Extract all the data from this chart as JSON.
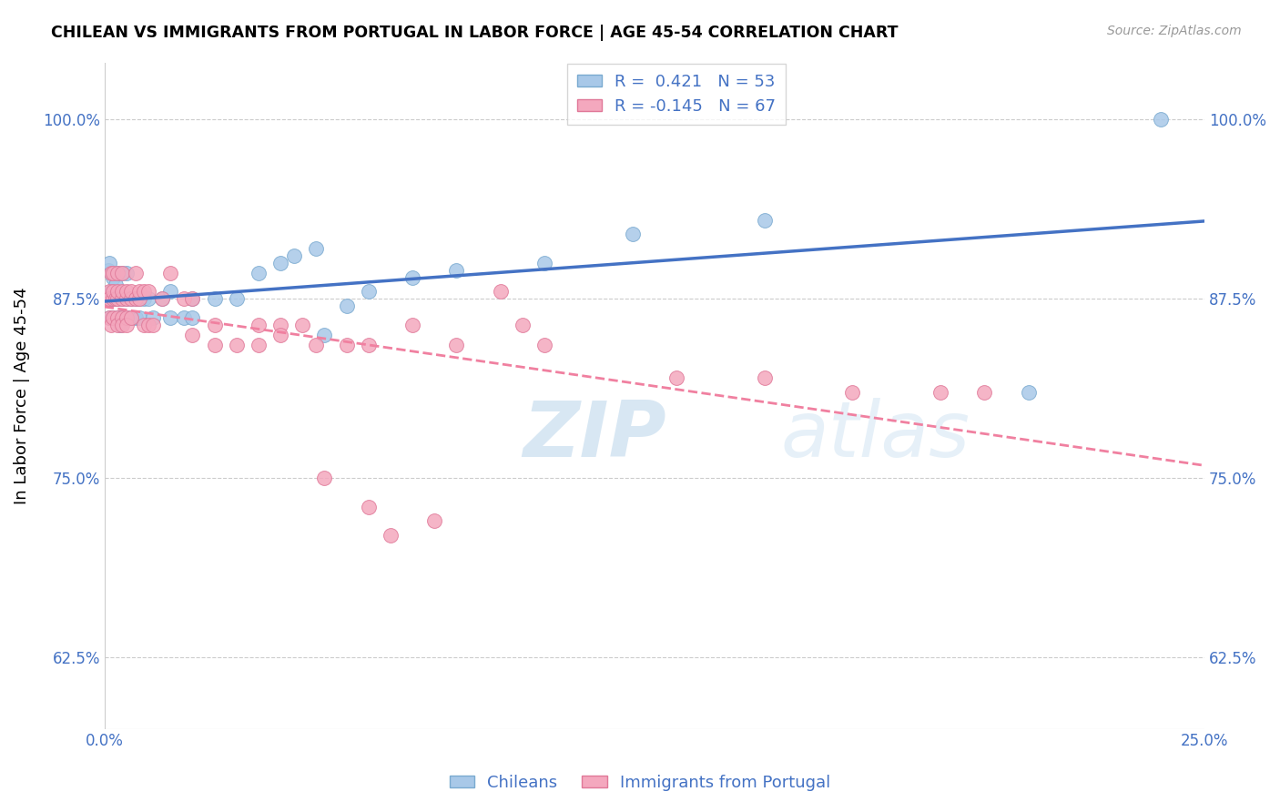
{
  "title": "CHILEAN VS IMMIGRANTS FROM PORTUGAL IN LABOR FORCE | AGE 45-54 CORRELATION CHART",
  "source": "Source: ZipAtlas.com",
  "ylabel": "In Labor Force | Age 45-54",
  "xmin": 0.0,
  "xmax": 0.25,
  "ymin": 0.575,
  "ymax": 1.04,
  "ytick_vals": [
    0.625,
    0.75,
    0.875,
    1.0
  ],
  "xtick_vals": [
    0.0,
    0.05,
    0.1,
    0.15,
    0.2,
    0.25
  ],
  "xtick_labels": [
    "0.0%",
    "",
    "",
    "",
    "",
    "25.0%"
  ],
  "R_blue": 0.421,
  "N_blue": 53,
  "R_pink": -0.145,
  "N_pink": 67,
  "blue_face": "#a8c8e8",
  "blue_edge": "#7aaad0",
  "pink_face": "#f4a8be",
  "pink_edge": "#e07898",
  "line_blue_color": "#4472c4",
  "line_pink_color": "#f080a0",
  "text_color": "#4472c4",
  "grid_color": "#cccccc",
  "watermark_zip": "ZIP",
  "watermark_atlas": "atlas",
  "blue_x": [
    0.0005,
    0.0008,
    0.001,
    0.001,
    0.0012,
    0.0015,
    0.0015,
    0.0018,
    0.002,
    0.002,
    0.0022,
    0.0025,
    0.003,
    0.003,
    0.003,
    0.0035,
    0.004,
    0.004,
    0.004,
    0.005,
    0.005,
    0.005,
    0.006,
    0.006,
    0.007,
    0.007,
    0.008,
    0.008,
    0.009,
    0.01,
    0.011,
    0.013,
    0.015,
    0.015,
    0.018,
    0.02,
    0.02,
    0.025,
    0.03,
    0.035,
    0.04,
    0.043,
    0.048,
    0.05,
    0.055,
    0.06,
    0.07,
    0.08,
    0.1,
    0.12,
    0.15,
    0.21,
    0.24
  ],
  "blue_y": [
    0.875,
    0.895,
    0.862,
    0.9,
    0.875,
    0.88,
    0.875,
    0.862,
    0.89,
    0.875,
    0.875,
    0.885,
    0.862,
    0.875,
    0.893,
    0.857,
    0.862,
    0.875,
    0.893,
    0.862,
    0.875,
    0.893,
    0.862,
    0.875,
    0.862,
    0.875,
    0.862,
    0.875,
    0.875,
    0.875,
    0.862,
    0.875,
    0.862,
    0.88,
    0.862,
    0.862,
    0.875,
    0.875,
    0.875,
    0.893,
    0.9,
    0.905,
    0.91,
    0.85,
    0.87,
    0.88,
    0.89,
    0.895,
    0.9,
    0.92,
    0.93,
    0.81,
    1.0
  ],
  "pink_x": [
    0.0005,
    0.001,
    0.001,
    0.001,
    0.0015,
    0.0015,
    0.002,
    0.002,
    0.002,
    0.002,
    0.0025,
    0.003,
    0.003,
    0.003,
    0.003,
    0.003,
    0.004,
    0.004,
    0.004,
    0.004,
    0.004,
    0.005,
    0.005,
    0.005,
    0.005,
    0.006,
    0.006,
    0.006,
    0.007,
    0.007,
    0.008,
    0.008,
    0.009,
    0.009,
    0.01,
    0.01,
    0.011,
    0.013,
    0.015,
    0.018,
    0.02,
    0.02,
    0.025,
    0.025,
    0.03,
    0.035,
    0.035,
    0.04,
    0.04,
    0.045,
    0.048,
    0.05,
    0.055,
    0.06,
    0.06,
    0.065,
    0.07,
    0.075,
    0.08,
    0.09,
    0.095,
    0.1,
    0.13,
    0.15,
    0.17,
    0.19,
    0.2
  ],
  "pink_y": [
    0.875,
    0.88,
    0.875,
    0.862,
    0.893,
    0.857,
    0.875,
    0.862,
    0.88,
    0.893,
    0.875,
    0.862,
    0.875,
    0.88,
    0.893,
    0.857,
    0.862,
    0.875,
    0.88,
    0.893,
    0.857,
    0.862,
    0.875,
    0.88,
    0.857,
    0.875,
    0.862,
    0.88,
    0.875,
    0.893,
    0.875,
    0.88,
    0.857,
    0.88,
    0.857,
    0.88,
    0.857,
    0.875,
    0.893,
    0.875,
    0.875,
    0.85,
    0.857,
    0.843,
    0.843,
    0.857,
    0.843,
    0.857,
    0.85,
    0.857,
    0.843,
    0.75,
    0.843,
    0.843,
    0.73,
    0.71,
    0.857,
    0.72,
    0.843,
    0.88,
    0.857,
    0.843,
    0.82,
    0.82,
    0.81,
    0.81,
    0.81
  ]
}
